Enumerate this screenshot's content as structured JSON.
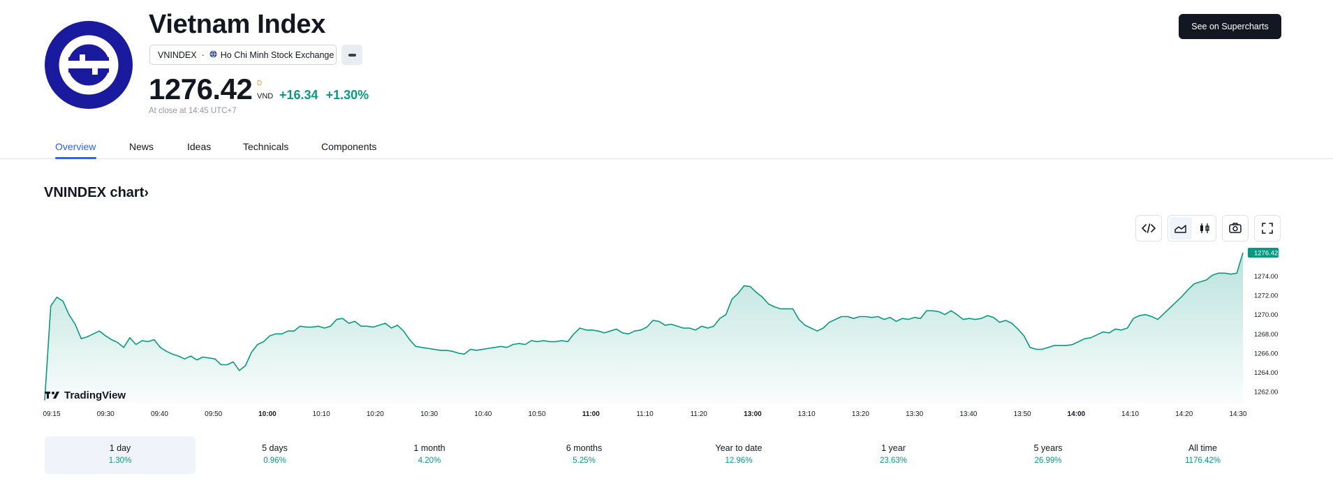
{
  "header": {
    "title": "Vietnam Index",
    "symbol": "VNINDEX",
    "separator": "·",
    "exchange": "Ho Chi Minh Stock Exchange",
    "price": "1276.42",
    "price_flag": "D",
    "currency": "VND",
    "change_abs": "+16.34",
    "change_pct": "+1.30%",
    "close_note": "At close at 14:45 UTC+7",
    "supercharts_label": "See on Supercharts"
  },
  "tabs": [
    {
      "label": "Overview"
    },
    {
      "label": "News"
    },
    {
      "label": "Ideas"
    },
    {
      "label": "Technicals"
    },
    {
      "label": "Components"
    }
  ],
  "chart_heading": "VNINDEX chart›",
  "colors": {
    "accent": "#2962ff",
    "up": "#089981",
    "dark": "#131722",
    "logo": "#1a1a9e"
  },
  "chart_data": {
    "type": "area",
    "brand": "TradingView",
    "last_value_label": "1276.42",
    "last_value": 1276.42,
    "ylim": [
      1261,
      1277
    ],
    "yticks": [
      1262,
      1264,
      1266,
      1268,
      1270,
      1272,
      1274
    ],
    "ytick_labels": [
      "1262.00",
      "1264.00",
      "1266.00",
      "1268.00",
      "1270.00",
      "1272.00",
      "1274.00"
    ],
    "xticks": [
      {
        "label": "09:15",
        "bold": false
      },
      {
        "label": "09:30",
        "bold": false
      },
      {
        "label": "09:40",
        "bold": false
      },
      {
        "label": "09:50",
        "bold": false
      },
      {
        "label": "10:00",
        "bold": true
      },
      {
        "label": "10:10",
        "bold": false
      },
      {
        "label": "10:20",
        "bold": false
      },
      {
        "label": "10:30",
        "bold": false
      },
      {
        "label": "10:40",
        "bold": false
      },
      {
        "label": "10:50",
        "bold": false
      },
      {
        "label": "11:00",
        "bold": true
      },
      {
        "label": "11:10",
        "bold": false
      },
      {
        "label": "11:20",
        "bold": false
      },
      {
        "label": "13:00",
        "bold": true
      },
      {
        "label": "13:10",
        "bold": false
      },
      {
        "label": "13:20",
        "bold": false
      },
      {
        "label": "13:30",
        "bold": false
      },
      {
        "label": "13:40",
        "bold": false
      },
      {
        "label": "13:50",
        "bold": false
      },
      {
        "label": "14:00",
        "bold": true
      },
      {
        "label": "14:10",
        "bold": false
      },
      {
        "label": "14:20",
        "bold": false
      },
      {
        "label": "14:30",
        "bold": false
      }
    ],
    "series": [
      {
        "values": [
          1261.1,
          1270.9,
          1271.8,
          1271.4,
          1270.0,
          1269.0,
          1267.5,
          1267.7,
          1268.0,
          1268.3,
          1267.8,
          1267.4,
          1267.1,
          1266.6,
          1267.6,
          1266.9,
          1267.3,
          1267.2,
          1267.4,
          1266.6,
          1266.2,
          1265.9,
          1265.7,
          1265.4,
          1265.7,
          1265.3,
          1265.6,
          1265.5,
          1265.4,
          1264.8,
          1264.8,
          1265.1,
          1264.2,
          1264.7,
          1266.1,
          1266.9,
          1267.2,
          1267.8,
          1268.0,
          1268.0,
          1268.3,
          1268.3,
          1268.8,
          1268.7,
          1268.7,
          1268.8,
          1268.6,
          1268.8,
          1269.5,
          1269.6,
          1269.1,
          1269.3,
          1268.8,
          1268.8,
          1268.7,
          1268.9,
          1269.1,
          1268.6,
          1268.9,
          1268.3,
          1267.4,
          1266.7,
          1266.6,
          1266.5,
          1266.4,
          1266.3,
          1266.3,
          1266.2,
          1266.0,
          1265.9,
          1266.4,
          1266.3,
          1266.4,
          1266.5,
          1266.6,
          1266.7,
          1266.6,
          1266.9,
          1267.0,
          1266.9,
          1267.3,
          1267.2,
          1267.3,
          1267.2,
          1267.2,
          1267.3,
          1267.2,
          1268.0,
          1268.6,
          1268.4,
          1268.4,
          1268.3,
          1268.1,
          1268.3,
          1268.5,
          1268.1,
          1268.0,
          1268.3,
          1268.4,
          1268.7,
          1269.4,
          1269.3,
          1268.9,
          1269.0,
          1268.8,
          1268.6,
          1268.6,
          1268.4,
          1268.8,
          1268.6,
          1268.8,
          1269.6,
          1270.0,
          1271.6,
          1272.2,
          1273.0,
          1272.9,
          1272.3,
          1271.8,
          1271.1,
          1270.8,
          1270.6,
          1270.6,
          1270.6,
          1269.5,
          1268.9,
          1268.6,
          1268.3,
          1268.6,
          1269.2,
          1269.5,
          1269.8,
          1269.8,
          1269.6,
          1269.8,
          1269.8,
          1269.7,
          1269.8,
          1269.5,
          1269.7,
          1269.3,
          1269.6,
          1269.5,
          1269.7,
          1269.6,
          1270.4,
          1270.4,
          1270.3,
          1270.0,
          1270.4,
          1270.0,
          1269.5,
          1269.6,
          1269.5,
          1269.6,
          1269.9,
          1269.7,
          1269.2,
          1269.4,
          1269.1,
          1268.5,
          1267.8,
          1266.6,
          1266.4,
          1266.4,
          1266.6,
          1266.8,
          1266.8,
          1266.8,
          1266.9,
          1267.2,
          1267.5,
          1267.6,
          1267.9,
          1268.2,
          1268.1,
          1268.5,
          1268.4,
          1268.6,
          1269.6,
          1269.9,
          1270.0,
          1269.8,
          1269.5,
          1270.1,
          1270.7,
          1271.3,
          1271.9,
          1272.6,
          1273.2,
          1273.4,
          1273.6,
          1274.1,
          1274.3,
          1274.3,
          1274.2,
          1274.3,
          1276.42
        ]
      }
    ]
  },
  "periods": [
    {
      "label": "1 day",
      "value": "1.30%",
      "active": true
    },
    {
      "label": "5 days",
      "value": "0.96%",
      "active": false
    },
    {
      "label": "1 month",
      "value": "4.20%",
      "active": false
    },
    {
      "label": "6 months",
      "value": "5.25%",
      "active": false
    },
    {
      "label": "Year to date",
      "value": "12.96%",
      "active": false
    },
    {
      "label": "1 year",
      "value": "23.63%",
      "active": false
    },
    {
      "label": "5 years",
      "value": "26.99%",
      "active": false
    },
    {
      "label": "All time",
      "value": "1176.42%",
      "active": false
    }
  ],
  "toolbar": {
    "embed_icon": "code-icon",
    "area_icon": "area-chart-icon",
    "candles_icon": "candlestick-icon",
    "snapshot_icon": "camera-icon",
    "fullscreen_icon": "fullscreen-icon"
  }
}
